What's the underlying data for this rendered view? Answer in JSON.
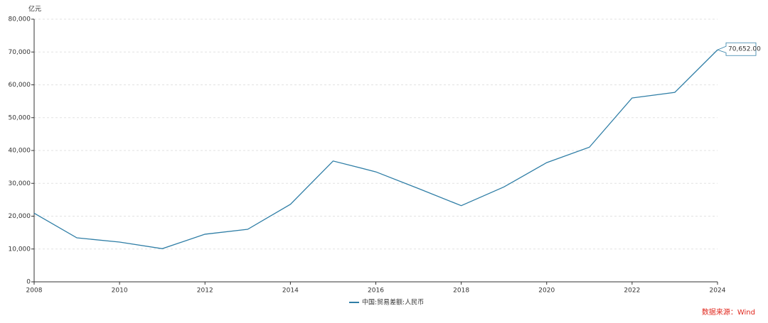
{
  "chart_data": {
    "type": "line",
    "y_unit": "亿元",
    "source": "数据来源：Wind",
    "x": [
      2008,
      2009,
      2010,
      2011,
      2012,
      2013,
      2014,
      2015,
      2016,
      2017,
      2018,
      2019,
      2020,
      2021,
      2022,
      2023,
      2024
    ],
    "series": [
      {
        "name": "中国:贸易差额:人民币",
        "color": "#2f7ea6",
        "values": [
          20900,
          13400,
          12100,
          10100,
          14500,
          16000,
          23600,
          36800,
          33500,
          28400,
          23200,
          28900,
          36300,
          41000,
          56000,
          57700,
          70652
        ],
        "value_labels": [
          null,
          null,
          null,
          null,
          null,
          null,
          null,
          null,
          null,
          null,
          null,
          null,
          null,
          null,
          null,
          null,
          "70,652.00"
        ]
      }
    ],
    "xlim": [
      2008,
      2024
    ],
    "xticks": [
      2008,
      2010,
      2012,
      2014,
      2016,
      2018,
      2020,
      2022,
      2024
    ],
    "ylim": [
      0,
      80000
    ],
    "yticks": [
      0,
      {
        "value": 10000,
        "label": "10,000"
      },
      {
        "value": 20000,
        "label": "20,000"
      },
      {
        "value": 30000,
        "label": "30,000"
      },
      {
        "value": 40000,
        "label": "40,000"
      },
      {
        "value": 50000,
        "label": "50,000"
      },
      {
        "value": 60000,
        "label": "60,000"
      },
      {
        "value": 70000,
        "label": "70,000"
      },
      {
        "value": 80000,
        "label": "80,000"
      }
    ],
    "grid": true
  }
}
